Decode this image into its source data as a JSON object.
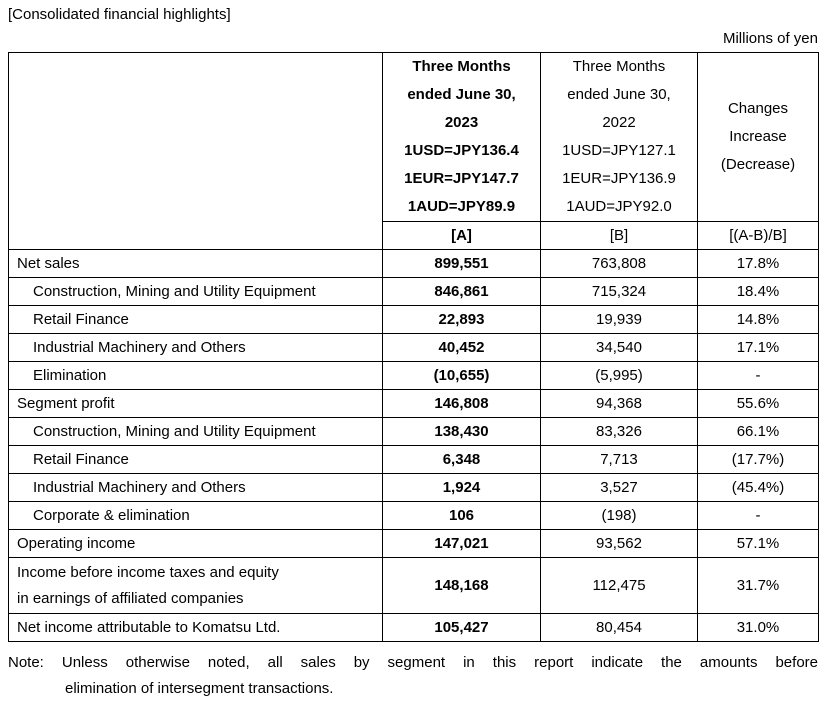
{
  "title": "[Consolidated financial highlights]",
  "unit_label": "Millions of yen",
  "table": {
    "header": {
      "col_a_lines": [
        "Three Months",
        "ended June 30,",
        "2023",
        "1USD=JPY136.4",
        "1EUR=JPY147.7",
        "1AUD=JPY89.9"
      ],
      "col_b_lines": [
        "Three Months",
        "ended June 30,",
        "2022",
        "1USD=JPY127.1",
        "1EUR=JPY136.9",
        "1AUD=JPY92.0"
      ],
      "changes_lines": [
        "Changes",
        "Increase",
        "(Decrease)"
      ],
      "col_a_tag": "[A]",
      "col_b_tag": "[B]",
      "changes_tag": "[(A-B)/B]"
    },
    "rows": [
      {
        "label": "Net sales",
        "a": "899,551",
        "b": "763,808",
        "chg": "17.8%"
      },
      {
        "label": "Construction, Mining and Utility Equipment",
        "a": "846,861",
        "b": "715,324",
        "chg": "18.4%"
      },
      {
        "label": "Retail Finance",
        "a": "22,893",
        "b": "19,939",
        "chg": "14.8%"
      },
      {
        "label": "Industrial Machinery and Others",
        "a": "40,452",
        "b": "34,540",
        "chg": "17.1%"
      },
      {
        "label": "Elimination",
        "a": "(10,655)",
        "b": "(5,995)",
        "chg": "-"
      },
      {
        "label": "Segment profit",
        "a": "146,808",
        "b": "94,368",
        "chg": "55.6%"
      },
      {
        "label": "Construction, Mining and Utility Equipment",
        "a": "138,430",
        "b": "83,326",
        "chg": "66.1%"
      },
      {
        "label": "Retail Finance",
        "a": "6,348",
        "b": "7,713",
        "chg": "(17.7%)"
      },
      {
        "label": "Industrial Machinery and Others",
        "a": "1,924",
        "b": "3,527",
        "chg": "(45.4%)"
      },
      {
        "label": "Corporate & elimination",
        "a": "106",
        "b": "(198)",
        "chg": "-"
      },
      {
        "label": "Operating income",
        "a": "147,021",
        "b": "93,562",
        "chg": "57.1%"
      },
      {
        "label": "Income before income taxes and equity",
        "label2": "in earnings of affiliated companies",
        "a": "148,168",
        "b": "112,475",
        "chg": "31.7%"
      },
      {
        "label": "Net income attributable to Komatsu Ltd.",
        "a": "105,427",
        "b": "80,454",
        "chg": "31.0%"
      }
    ]
  },
  "note": {
    "line1": "Note: Unless otherwise noted, all sales by segment in this report indicate the amounts before",
    "line2": "elimination of intersegment transactions."
  }
}
